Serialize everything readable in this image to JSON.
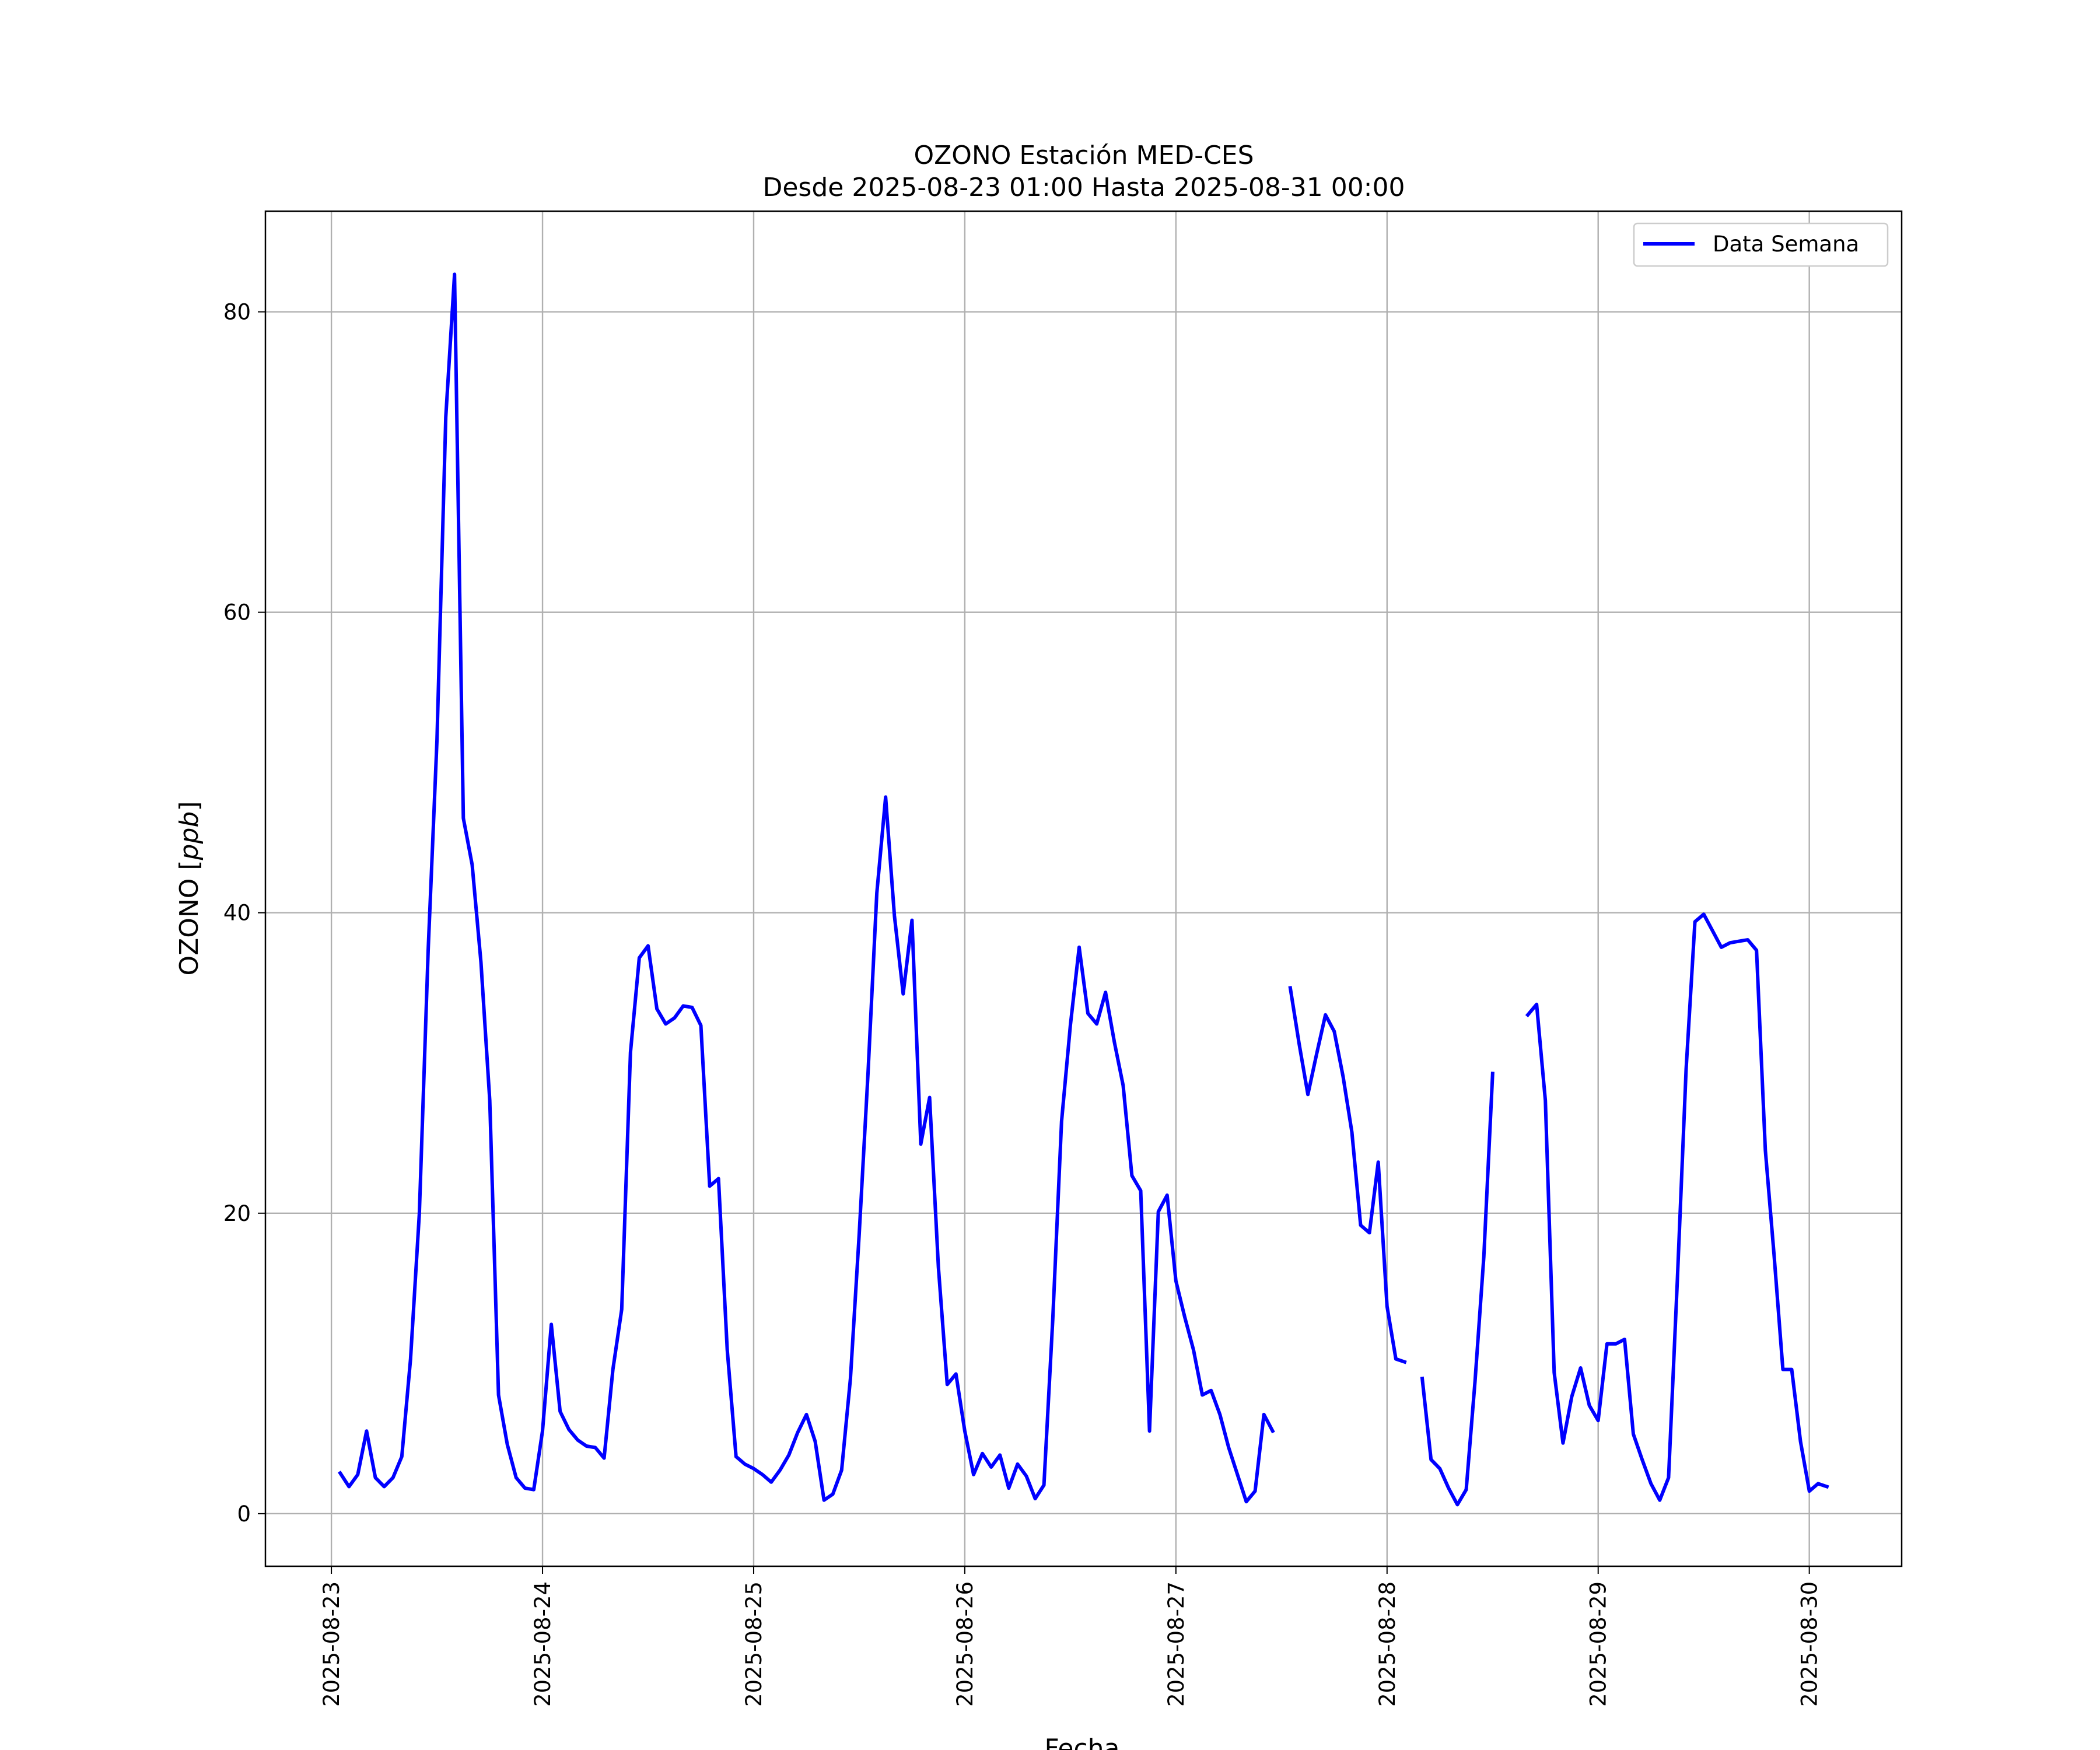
{
  "chart_data": {
    "type": "line",
    "title": "OZONO Estación MED-CES",
    "subtitle": "Desde 2025-08-23 01:00 Hasta 2025-08-31 00:00",
    "xlabel": "Fecha",
    "ylabel": "OZONO [ppb]",
    "ylabel_prefix": "OZONO [",
    "ylabel_unit": "ppb",
    "ylabel_suffix": "]",
    "x_ticks": [
      "2025-08-23",
      "2025-08-24",
      "2025-08-25",
      "2025-08-26",
      "2025-08-27",
      "2025-08-28",
      "2025-08-29",
      "2025-08-30"
    ],
    "y_ticks": [
      0,
      20,
      40,
      60,
      80
    ],
    "xlim": [
      "2025-08-22 16:30",
      "2025-08-30 10:30"
    ],
    "ylim": [
      -3.5,
      86.7
    ],
    "grid": true,
    "legend_position": "top-right",
    "colors": {
      "series": "#0000ff",
      "grid": "#b0b0b0",
      "axes": "#000000"
    },
    "series": [
      {
        "name": "Data Semana",
        "x_start": "2025-08-23 01:00",
        "x_step": "1h",
        "values": [
          2.7,
          1.8,
          2.6,
          5.5,
          2.4,
          1.8,
          2.4,
          3.8,
          10.3,
          20.0,
          37.5,
          51.5,
          73.0,
          82.5,
          46.3,
          43.2,
          36.7,
          27.5,
          7.9,
          4.6,
          2.4,
          1.7,
          1.6,
          5.5,
          12.6,
          6.8,
          5.6,
          4.9,
          4.5,
          4.4,
          3.7,
          9.6,
          13.6,
          30.7,
          37.0,
          37.8,
          33.6,
          32.6,
          33.0,
          33.8,
          33.7,
          32.5,
          21.8,
          22.3,
          10.9,
          3.8,
          3.3,
          3.0,
          2.6,
          2.1,
          2.9,
          3.9,
          5.4,
          6.6,
          4.8,
          0.9,
          1.3,
          2.9,
          9.0,
          18.6,
          29.3,
          41.3,
          47.7,
          39.8,
          34.6,
          39.5,
          24.6,
          27.7,
          16.4,
          8.6,
          9.3,
          5.5,
          2.6,
          4.0,
          3.1,
          3.9,
          1.7,
          3.3,
          2.5,
          1.0,
          1.9,
          12.9,
          26.1,
          32.5,
          37.7,
          33.3,
          32.6,
          34.7,
          31.4,
          28.5,
          22.5,
          21.5,
          5.5,
          20.1,
          21.2,
          15.5,
          13.1,
          10.9,
          7.9,
          8.2,
          6.6,
          4.4,
          2.6,
          0.8,
          1.5,
          6.6,
          5.5,
          null,
          35.0,
          31.3,
          27.9,
          30.6,
          33.2,
          32.1,
          29.1,
          25.4,
          19.2,
          18.7,
          23.4,
          13.8,
          10.3,
          10.1,
          null,
          9.0,
          3.6,
          3.0,
          1.7,
          0.6,
          1.6,
          8.8,
          17.1,
          29.3,
          null,
          null,
          null,
          33.2,
          33.9,
          27.5,
          9.4,
          4.7,
          7.8,
          9.7,
          7.2,
          6.2,
          11.3,
          11.3,
          11.6,
          5.3,
          3.6,
          2.0,
          0.9,
          2.4,
          15.5,
          29.6,
          39.4,
          39.9,
          38.8,
          37.7,
          38.0,
          38.1,
          38.2,
          37.5,
          24.2,
          17.2,
          9.6,
          9.6,
          4.8,
          1.5,
          2.0,
          1.8
        ]
      }
    ]
  }
}
